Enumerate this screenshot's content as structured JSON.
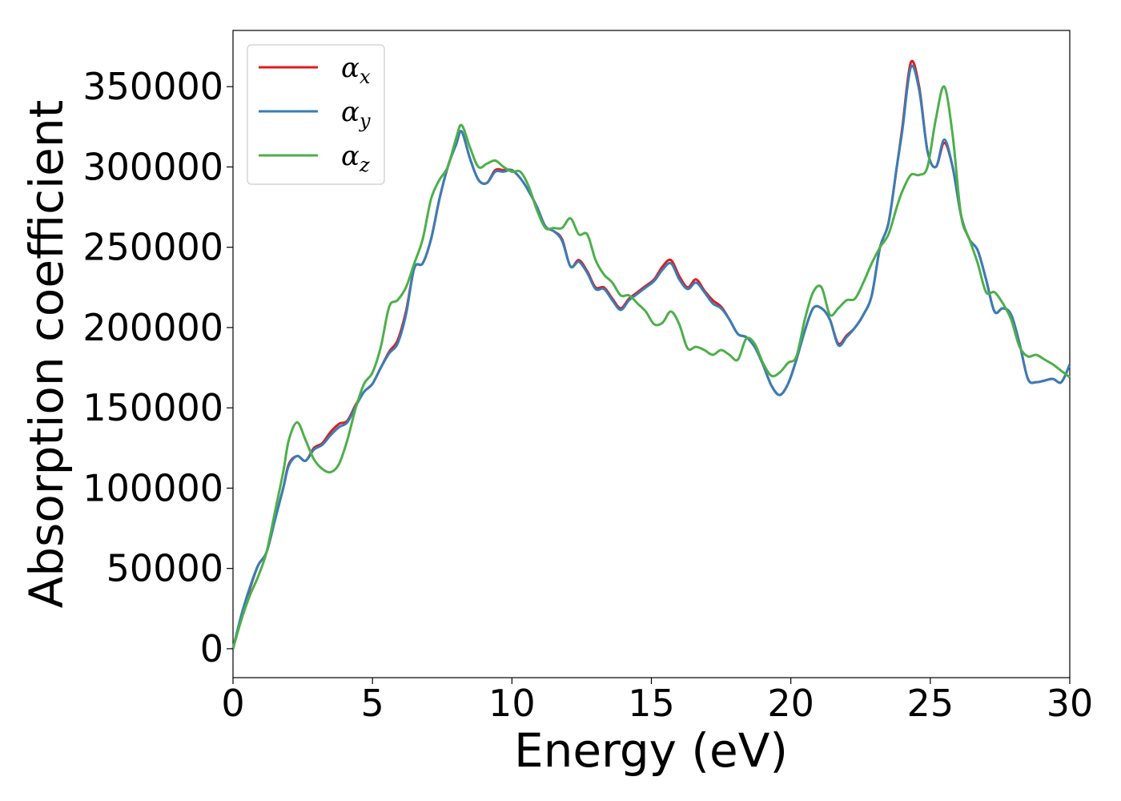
{
  "chart_data": {
    "type": "line",
    "xlabel": "Energy (eV)",
    "ylabel": "Absorption coefficient",
    "xlim": [
      0,
      30
    ],
    "ylim": [
      -18000,
      385000
    ],
    "xticks": [
      0,
      5,
      10,
      15,
      20,
      25,
      30
    ],
    "xtick_labels": [
      "0",
      "5",
      "10",
      "15",
      "20",
      "25",
      "30"
    ],
    "yticks": [
      0,
      50000,
      100000,
      150000,
      200000,
      250000,
      300000,
      350000
    ],
    "ytick_labels": [
      "0",
      "50000",
      "100000",
      "150000",
      "200000",
      "250000",
      "300000",
      "350000"
    ],
    "grid": false,
    "legend_position": "top-left",
    "series": [
      {
        "name": "αx",
        "legend_base": "α",
        "legend_sub": "x",
        "color": "#e41a1c",
        "x": [
          0,
          0.3,
          0.6,
          0.9,
          1.2,
          1.5,
          1.8,
          2.0,
          2.3,
          2.6,
          2.9,
          3.2,
          3.5,
          3.8,
          4.1,
          4.4,
          4.7,
          5.0,
          5.3,
          5.6,
          5.9,
          6.2,
          6.5,
          6.8,
          7.1,
          7.4,
          7.7,
          8.0,
          8.2,
          8.5,
          8.8,
          9.1,
          9.4,
          9.7,
          10.0,
          10.3,
          10.6,
          10.9,
          11.2,
          11.5,
          11.8,
          12.1,
          12.4,
          12.7,
          13.0,
          13.3,
          13.6,
          13.9,
          14.2,
          14.5,
          14.8,
          15.1,
          15.4,
          15.7,
          16.0,
          16.3,
          16.6,
          16.9,
          17.2,
          17.5,
          17.8,
          18.1,
          18.4,
          18.7,
          19.0,
          19.3,
          19.6,
          19.9,
          20.2,
          20.5,
          20.8,
          21.1,
          21.4,
          21.7,
          22.0,
          22.3,
          22.6,
          22.9,
          23.2,
          23.5,
          23.8,
          24.0,
          24.3,
          24.6,
          24.9,
          25.2,
          25.5,
          25.8,
          26.1,
          26.4,
          26.7,
          27.0,
          27.3,
          27.6,
          27.9,
          28.2,
          28.5,
          28.8,
          29.1,
          29.4,
          29.7,
          30.0
        ],
        "values": [
          0,
          20000,
          37000,
          52000,
          60000,
          80000,
          100000,
          115000,
          120000,
          117000,
          125000,
          128000,
          135000,
          140000,
          142000,
          152000,
          160000,
          165000,
          175000,
          185000,
          192000,
          210000,
          237000,
          240000,
          255000,
          280000,
          300000,
          315000,
          322000,
          305000,
          292000,
          290000,
          298000,
          298000,
          298000,
          293000,
          285000,
          275000,
          263000,
          260000,
          255000,
          238000,
          242000,
          235000,
          225000,
          225000,
          218000,
          212000,
          218000,
          222000,
          226000,
          230000,
          238000,
          242000,
          232000,
          225000,
          230000,
          223000,
          217000,
          213000,
          205000,
          196000,
          194000,
          188000,
          177000,
          164000,
          158000,
          165000,
          180000,
          198000,
          212000,
          212000,
          205000,
          190000,
          195000,
          200000,
          208000,
          220000,
          250000,
          265000,
          300000,
          325000,
          365000,
          350000,
          310000,
          300000,
          315000,
          300000,
          270000,
          255000,
          248000,
          230000,
          210000,
          212000,
          208000,
          190000,
          168000,
          166000,
          167000,
          168000,
          166000,
          177000
        ]
      },
      {
        "name": "αy",
        "legend_base": "α",
        "legend_sub": "y",
        "color": "#377eb8",
        "x": [
          0,
          0.3,
          0.6,
          0.9,
          1.2,
          1.5,
          1.8,
          2.0,
          2.3,
          2.6,
          2.9,
          3.2,
          3.5,
          3.8,
          4.1,
          4.4,
          4.7,
          5.0,
          5.3,
          5.6,
          5.9,
          6.2,
          6.5,
          6.8,
          7.1,
          7.4,
          7.7,
          8.0,
          8.2,
          8.5,
          8.8,
          9.1,
          9.4,
          9.7,
          10.0,
          10.3,
          10.6,
          10.9,
          11.2,
          11.5,
          11.8,
          12.1,
          12.4,
          12.7,
          13.0,
          13.3,
          13.6,
          13.9,
          14.2,
          14.5,
          14.8,
          15.1,
          15.4,
          15.7,
          16.0,
          16.3,
          16.6,
          16.9,
          17.2,
          17.5,
          17.8,
          18.1,
          18.4,
          18.7,
          19.0,
          19.3,
          19.6,
          19.9,
          20.2,
          20.5,
          20.8,
          21.1,
          21.4,
          21.7,
          22.0,
          22.3,
          22.6,
          22.9,
          23.2,
          23.5,
          23.8,
          24.0,
          24.3,
          24.6,
          24.9,
          25.2,
          25.5,
          25.8,
          26.1,
          26.4,
          26.7,
          27.0,
          27.3,
          27.6,
          27.9,
          28.2,
          28.5,
          28.8,
          29.1,
          29.4,
          29.7,
          30.0
        ],
        "values": [
          0,
          21000,
          38000,
          52000,
          60000,
          80000,
          100000,
          114000,
          120000,
          117000,
          124000,
          127000,
          133000,
          138000,
          141000,
          151000,
          160000,
          165000,
          175000,
          184000,
          190000,
          208000,
          237000,
          240000,
          255000,
          280000,
          300000,
          314000,
          322000,
          305000,
          292000,
          290000,
          297000,
          297000,
          298000,
          293000,
          285000,
          275000,
          263000,
          260000,
          254000,
          238000,
          241000,
          234000,
          224000,
          224000,
          217000,
          211000,
          217000,
          221000,
          225000,
          229000,
          236000,
          240000,
          230000,
          224000,
          228000,
          222000,
          215000,
          212000,
          205000,
          196000,
          194000,
          188000,
          177000,
          164000,
          158000,
          165000,
          180000,
          198000,
          212000,
          212000,
          205000,
          189000,
          194000,
          200000,
          208000,
          220000,
          250000,
          265000,
          300000,
          323000,
          362000,
          348000,
          310000,
          300000,
          317000,
          300000,
          270000,
          255000,
          248000,
          230000,
          210000,
          212000,
          208000,
          190000,
          168000,
          166000,
          167000,
          168000,
          166000,
          177000
        ]
      },
      {
        "name": "αz",
        "legend_base": "α",
        "legend_sub": "z",
        "color": "#4daf4a",
        "x": [
          0,
          0.3,
          0.6,
          0.9,
          1.2,
          1.5,
          1.8,
          2.0,
          2.3,
          2.6,
          2.9,
          3.2,
          3.5,
          3.8,
          4.1,
          4.4,
          4.7,
          5.0,
          5.3,
          5.6,
          5.9,
          6.2,
          6.5,
          6.8,
          7.1,
          7.4,
          7.7,
          8.0,
          8.2,
          8.5,
          8.8,
          9.1,
          9.4,
          9.7,
          10.0,
          10.3,
          10.6,
          10.9,
          11.2,
          11.5,
          11.8,
          12.1,
          12.4,
          12.7,
          13.0,
          13.3,
          13.6,
          13.9,
          14.2,
          14.5,
          14.8,
          15.1,
          15.4,
          15.7,
          16.0,
          16.3,
          16.6,
          16.9,
          17.2,
          17.5,
          17.8,
          18.1,
          18.4,
          18.7,
          19.0,
          19.3,
          19.6,
          19.9,
          20.2,
          20.5,
          20.8,
          21.1,
          21.4,
          21.7,
          22.0,
          22.3,
          22.6,
          22.9,
          23.2,
          23.5,
          23.8,
          24.0,
          24.3,
          24.6,
          24.9,
          25.2,
          25.5,
          25.8,
          26.1,
          26.4,
          26.7,
          27.0,
          27.3,
          27.6,
          27.9,
          28.2,
          28.5,
          28.8,
          29.1,
          29.4,
          29.7,
          30.0
        ],
        "values": [
          0,
          18000,
          33000,
          45000,
          60000,
          85000,
          110000,
          130000,
          141000,
          130000,
          118000,
          112000,
          110000,
          115000,
          130000,
          150000,
          165000,
          172000,
          188000,
          213000,
          217000,
          225000,
          240000,
          255000,
          280000,
          292000,
          300000,
          318000,
          326000,
          312000,
          300000,
          302000,
          304000,
          300000,
          297000,
          297000,
          288000,
          273000,
          262000,
          262000,
          262000,
          268000,
          258000,
          258000,
          242000,
          233000,
          228000,
          220000,
          220000,
          215000,
          210000,
          202000,
          203000,
          210000,
          202000,
          187000,
          188000,
          186000,
          183000,
          186000,
          183000,
          180000,
          193000,
          190000,
          178000,
          170000,
          172000,
          178000,
          182000,
          205000,
          222000,
          225000,
          208000,
          212000,
          217000,
          218000,
          228000,
          240000,
          250000,
          258000,
          275000,
          285000,
          295000,
          295000,
          300000,
          330000,
          350000,
          320000,
          270000,
          255000,
          240000,
          222000,
          222000,
          215000,
          205000,
          188000,
          182000,
          183000,
          180000,
          177000,
          173000,
          169000
        ]
      }
    ]
  }
}
